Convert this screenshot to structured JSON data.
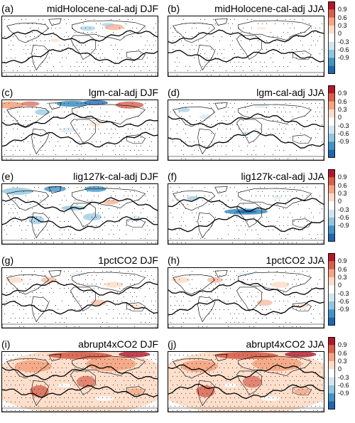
{
  "figure": {
    "panels": [
      {
        "letter": "(a)",
        "name": "midHolocene-cal-adj DJF",
        "shading": "light"
      },
      {
        "letter": "(b)",
        "name": "midHolocene-cal-adj JJA",
        "shading": "minimal"
      },
      {
        "letter": "(c)",
        "name": "lgm-cal-adj DJF",
        "shading": "mixed-strong"
      },
      {
        "letter": "(d)",
        "name": "lgm-cal-adj JJA",
        "shading": "light-blue"
      },
      {
        "letter": "(e)",
        "name": "lig127k-cal-adj DJF",
        "shading": "blue-dominant"
      },
      {
        "letter": "(f)",
        "name": "lig127k-cal-adj JJA",
        "shading": "blue-pacific"
      },
      {
        "letter": "(g)",
        "name": "1pctCO2 DJF",
        "shading": "light-warm"
      },
      {
        "letter": "(h)",
        "name": "1pctCO2 JJA",
        "shading": "light-warm"
      },
      {
        "letter": "(i)",
        "name": "abrupt4xCO2 DJF",
        "shading": "strong-warm"
      },
      {
        "letter": "(j)",
        "name": "abrupt4xCO2 JJA",
        "shading": "strong-warm"
      }
    ]
  },
  "chart_data": {
    "type": "heatmap",
    "layout": "5 rows x 2 columns of global maps",
    "colorbar": {
      "ticks": [
        "0.9",
        "0.6",
        "0.3",
        "0",
        "-0.3",
        "-0.6",
        "-0.9"
      ],
      "range": [
        -1.0,
        1.0
      ],
      "colors": [
        "#b2182b",
        "#d6604d",
        "#f4a582",
        "#fddbc7",
        "#ffffff",
        "#d1e5f0",
        "#92c5de",
        "#4393c3",
        "#2166ac"
      ]
    },
    "overlays": [
      "stippling (significance)",
      "black contours"
    ]
  }
}
